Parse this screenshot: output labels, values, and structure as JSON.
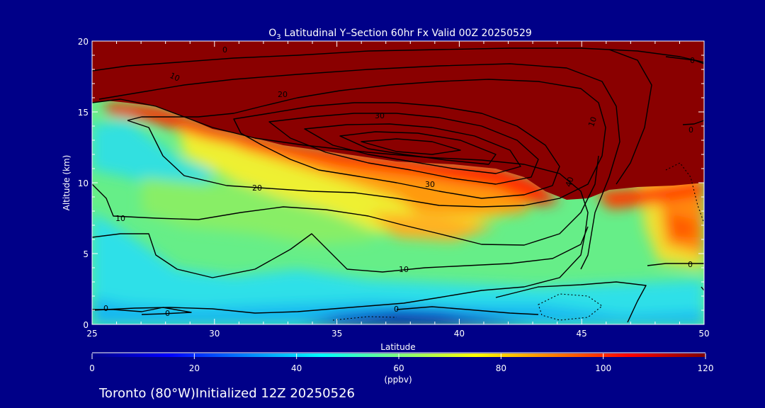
{
  "chart_data": {
    "type": "heatmap",
    "title_prefix": "O",
    "title_sub": "3",
    "title_rest": " Latitudinal Y–Section 60hr  Fx Valid 00Z 20250529",
    "xlabel": "Latitude",
    "ylabel": "Altitude (km)",
    "xlim": [
      25,
      50
    ],
    "ylim": [
      0,
      20
    ],
    "xticks": [
      "25",
      "30",
      "35",
      "40",
      "45",
      "50"
    ],
    "yticks": [
      "0",
      "5",
      "10",
      "15",
      "20"
    ],
    "colorbar": {
      "label": "(ppbv)",
      "range": [
        0,
        120
      ],
      "ticks": [
        "0",
        "20",
        "40",
        "60",
        "80",
        "100",
        "120"
      ],
      "colors": [
        "#00008b",
        "#0000ff",
        "#0080ff",
        "#00ffff",
        "#80ff80",
        "#ffff00",
        "#ff8000",
        "#ff0000",
        "#800000"
      ]
    },
    "contour_levels_labeled": [
      "0",
      "10",
      "20",
      "30",
      "40"
    ],
    "grid": false
  },
  "footer": {
    "location_text": "Toronto (80°W)Initialized 12Z 20250526"
  }
}
